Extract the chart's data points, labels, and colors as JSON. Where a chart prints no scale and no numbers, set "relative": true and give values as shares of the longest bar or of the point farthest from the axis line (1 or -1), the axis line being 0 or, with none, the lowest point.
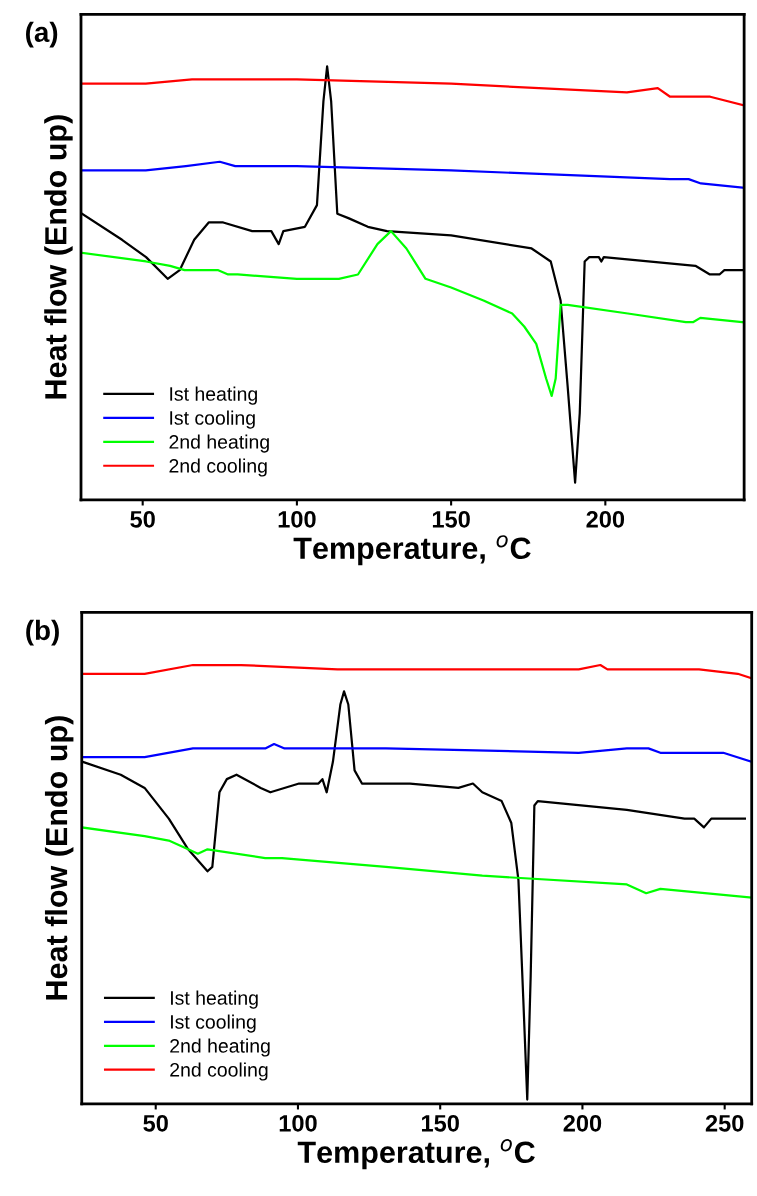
{
  "chart_data": [
    {
      "type": "line",
      "relative": true,
      "xlabel": "Temperature, $^{o}$C",
      "ylabel": "Heat flow (Endo up)",
      "annotations": [
        "(a)"
      ],
      "xlim": [
        30,
        245
      ],
      "xticks": [
        50,
        100,
        150,
        200
      ],
      "legend": "bottom left",
      "tick_labels": "x",
      "series": [
        {
          "name": "Ist heating",
          "color": "#000000",
          "x": [
            30.3,
            43.3,
            51.1,
            58.1,
            62.0,
            66.7,
            71.4,
            76.1,
            85.5,
            91.7,
            94.1,
            95.6,
            102.6,
            106.5,
            108.6,
            109.8,
            111.1,
            113.1,
            116.7,
            123.0,
            129.2,
            150,
            176.1,
            182.3,
            185.5,
            187.8,
            190.2,
            191.7,
            193.3,
            194.8,
            197.9,
            198.7,
            199.5,
            229.2,
            233.9,
            237.0,
            238.6,
            244.8
          ],
          "values": [
            0.66,
            0.6,
            0.56,
            0.51,
            0.53,
            0.6,
            0.64,
            0.64,
            0.62,
            0.62,
            0.59,
            0.62,
            0.63,
            0.68,
            0.92,
            1.0,
            0.92,
            0.66,
            0.65,
            0.63,
            0.62,
            0.61,
            0.58,
            0.55,
            0.46,
            0.26,
            0.04,
            0.2,
            0.55,
            0.56,
            0.56,
            0.55,
            0.56,
            0.54,
            0.52,
            0.52,
            0.53,
            0.53
          ]
        },
        {
          "name": "Ist cooling",
          "color": "#0000ff",
          "x": [
            30,
            51,
            64,
            75,
            80,
            100,
            150,
            221,
            227,
            231,
            245
          ],
          "values": [
            0.76,
            0.76,
            0.77,
            0.78,
            0.77,
            0.77,
            0.76,
            0.74,
            0.74,
            0.73,
            0.72
          ]
        },
        {
          "name": "2nd heating",
          "color": "#00ff00",
          "x": [
            30.3,
            51.1,
            58.9,
            63.6,
            74.5,
            77.7,
            80.8,
            100,
            113.6,
            119.8,
            126.1,
            130.5,
            135.5,
            141.7,
            150,
            160.5,
            169.8,
            173.7,
            177.6,
            180.8,
            182.6,
            183.9,
            185.5,
            187.8,
            207.3,
            226.1,
            228.4,
            230.8,
            244.8
          ],
          "values": [
            0.57,
            0.55,
            0.54,
            0.53,
            0.53,
            0.52,
            0.52,
            0.51,
            0.51,
            0.52,
            0.59,
            0.62,
            0.58,
            0.51,
            0.49,
            0.46,
            0.43,
            0.4,
            0.36,
            0.28,
            0.24,
            0.28,
            0.45,
            0.45,
            0.43,
            0.41,
            0.41,
            0.42,
            0.41
          ]
        },
        {
          "name": "2nd cooling",
          "color": "#ff0000",
          "x": [
            30,
            51,
            66,
            100,
            150,
            207,
            217,
            221,
            234,
            245
          ],
          "values": [
            0.96,
            0.96,
            0.97,
            0.97,
            0.96,
            0.94,
            0.95,
            0.93,
            0.93,
            0.91
          ]
        }
      ]
    },
    {
      "type": "line",
      "relative": true,
      "xlabel": "Temperature, $^{o}$C",
      "ylabel": "Heat flow (Endo up)",
      "annotations": [
        "(b)"
      ],
      "xlim": [
        24,
        259.5
      ],
      "xticks": [
        50,
        100,
        150,
        200,
        250
      ],
      "legend": "bottom left",
      "tick_labels": "x",
      "series": [
        {
          "name": "Ist heating",
          "color": "#000000",
          "x": [
            24.1,
            37.7,
            46.1,
            54.6,
            61.4,
            68.2,
            69.9,
            72.4,
            75.0,
            78.4,
            86.9,
            90.3,
            100.4,
            107.2,
            108.6,
            110.1,
            112.3,
            114.9,
            116.2,
            117.7,
            119.9,
            122.5,
            130.9,
            139.4,
            156.4,
            161.5,
            164.8,
            171.6,
            175.0,
            177.5,
            179.2,
            180.6,
            181.8,
            183.1,
            184.3,
            215.6,
            235.9,
            239.3,
            242.7,
            245.3,
            257.1
          ],
          "values": [
            0.78,
            0.75,
            0.72,
            0.65,
            0.58,
            0.53,
            0.54,
            0.71,
            0.74,
            0.75,
            0.72,
            0.71,
            0.73,
            0.73,
            0.74,
            0.71,
            0.78,
            0.91,
            0.94,
            0.91,
            0.76,
            0.73,
            0.73,
            0.73,
            0.72,
            0.73,
            0.71,
            0.69,
            0.64,
            0.51,
            0.24,
            0.01,
            0.29,
            0.68,
            0.69,
            0.67,
            0.65,
            0.65,
            0.63,
            0.65,
            0.65
          ]
        },
        {
          "name": "Ist cooling",
          "color": "#0000ff",
          "x": [
            24.1,
            46.1,
            63.1,
            88.5,
            91.6,
            95.3,
            130.9,
            198.7,
            215.6,
            223.2,
            227.4,
            249.5,
            259.3
          ],
          "values": [
            0.79,
            0.79,
            0.81,
            0.81,
            0.82,
            0.81,
            0.81,
            0.8,
            0.81,
            0.81,
            0.8,
            0.8,
            0.78
          ]
        },
        {
          "name": "2nd heating",
          "color": "#00ff00",
          "x": [
            24.1,
            46.1,
            54.6,
            61.4,
            64.8,
            68.2,
            88.5,
            91.9,
            94.4,
            130.9,
            164.8,
            215.6,
            222.4,
            227.4,
            259.3
          ],
          "values": [
            0.63,
            0.61,
            0.6,
            0.58,
            0.57,
            0.58,
            0.56,
            0.56,
            0.56,
            0.54,
            0.52,
            0.5,
            0.48,
            0.49,
            0.47
          ]
        },
        {
          "name": "2nd cooling",
          "color": "#ff0000",
          "x": [
            24.1,
            46.1,
            63.1,
            80.0,
            113.9,
            164.8,
            198.7,
            206.3,
            208.8,
            241.0,
            254.6,
            259.3
          ],
          "values": [
            0.98,
            0.98,
            1.0,
            1.0,
            0.99,
            0.99,
            0.99,
            1.0,
            0.99,
            0.99,
            0.98,
            0.97
          ]
        }
      ]
    }
  ]
}
